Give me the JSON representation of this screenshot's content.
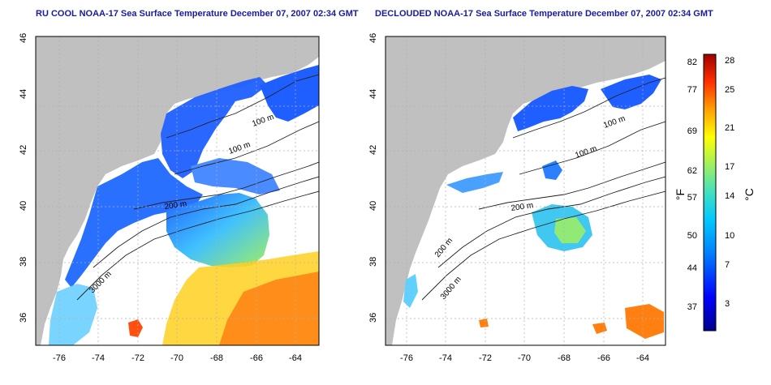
{
  "titles": {
    "left": "RU COOL NOAA-17 Sea Surface Temperature December 07, 2007 02:34 GMT",
    "right": "DECLOUDED NOAA-17 Sea Surface Temperature December 07, 2007 02:34 GMT"
  },
  "axes": {
    "lat_ticks": [
      "46",
      "44",
      "42",
      "40",
      "38",
      "36"
    ],
    "lon_ticks": [
      "-76",
      "-74",
      "-72",
      "-70",
      "-68",
      "-66",
      "-64"
    ]
  },
  "contour_labels_left": [
    "100 m",
    "100 m",
    "200 m",
    "3000 m"
  ],
  "contour_labels_right": [
    "100 m",
    "100 m",
    "200 m",
    "200 m",
    "3000 m"
  ],
  "colorbar": {
    "fahrenheit_label": "°F",
    "celsius_label": "°C",
    "fahrenheit_ticks": [
      "82",
      "77",
      "69",
      "62",
      "57",
      "50",
      "44",
      "37"
    ],
    "celsius_ticks": [
      "28",
      "25",
      "21",
      "17",
      "14",
      "10",
      "7",
      "3"
    ],
    "colors": [
      "#00008b",
      "#0000ff",
      "#0080ff",
      "#00c0ff",
      "#40e0c0",
      "#a0f060",
      "#ffff00",
      "#ffa000",
      "#ff3000",
      "#a00000"
    ]
  },
  "colors": {
    "land": "#c0c0c0",
    "title": "#1a1aa0"
  }
}
